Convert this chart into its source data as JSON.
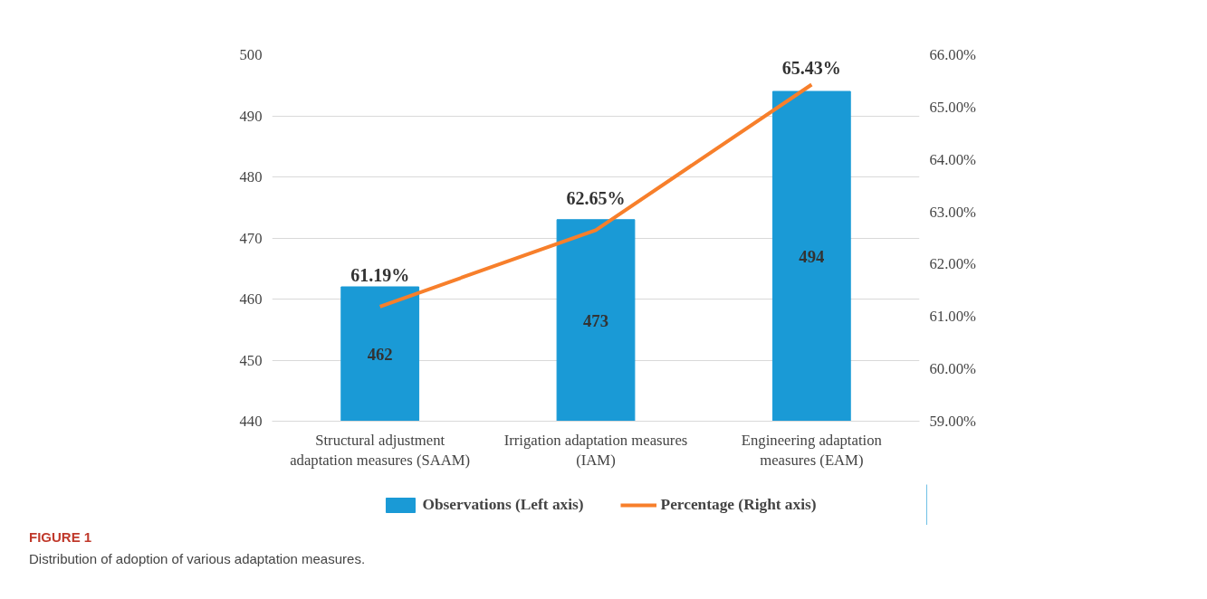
{
  "chart_data": {
    "type": "bar",
    "categories": [
      "Structural adjustment adaptation measures (SAAM)",
      "Irrigation adaptation measures (IAM)",
      "Engineering adaptation measures (EAM)"
    ],
    "series": [
      {
        "name": "Observations (Left axis)",
        "color": "#1a9ad6",
        "values": [
          462,
          473,
          494
        ],
        "data_labels": true
      },
      {
        "name": "Percentage (Right axis)",
        "type": "line",
        "axis": "y2",
        "color": "#f77f2b",
        "values": [
          61.19,
          62.65,
          65.43
        ],
        "value_labels": [
          "61.19%",
          "62.65%",
          "65.43%"
        ]
      }
    ],
    "ylim": [
      440,
      500
    ],
    "yticks": [
      440,
      450,
      460,
      470,
      480,
      490,
      500
    ],
    "y2lim": [
      59,
      66
    ],
    "y2ticks": [
      {
        "value": 59,
        "label": "59.00%"
      },
      {
        "value": 60,
        "label": "60.00%"
      },
      {
        "value": 61,
        "label": "61.00%"
      },
      {
        "value": 62,
        "label": "62.00%"
      },
      {
        "value": 63,
        "label": "63.00%"
      },
      {
        "value": 64,
        "label": "64.00%"
      },
      {
        "value": 65,
        "label": "65.00%"
      },
      {
        "value": 66,
        "label": "66.00%"
      }
    ],
    "grid": "y",
    "legend": "bottom",
    "marker": "none",
    "line_style": "solid",
    "annotations": [
      "FIGURE 1",
      "Distribution of adoption of various adaptation measures."
    ]
  }
}
